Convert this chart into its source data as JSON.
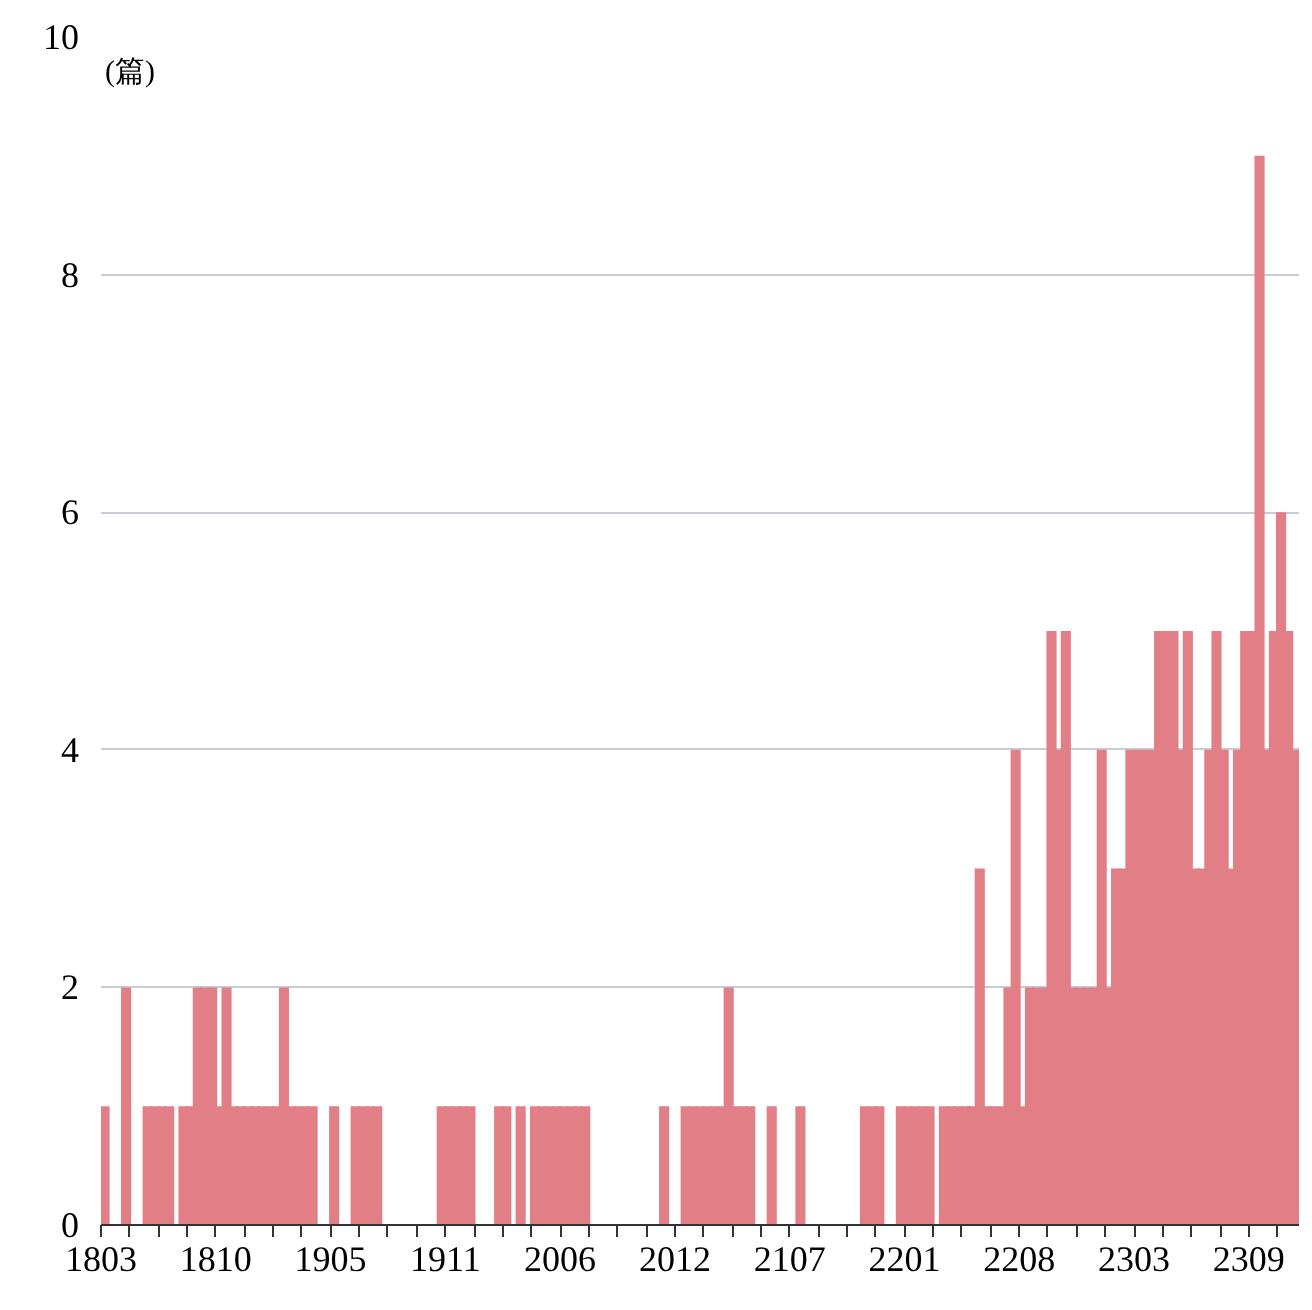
{
  "chart_data": {
    "type": "bar",
    "ylabel": "(篇)",
    "color": "#e27f86",
    "categories": [
      "1803",
      null,
      null,
      null,
      null,
      null,
      null,
      null,
      null,
      null,
      null,
      null,
      null,
      null,
      null,
      null,
      "1810",
      null,
      null,
      null,
      null,
      null,
      null,
      null,
      null,
      null,
      null,
      null,
      null,
      null,
      null,
      null,
      "1905",
      null,
      null,
      null,
      null,
      null,
      null,
      null,
      null,
      null,
      null,
      null,
      null,
      null,
      null,
      null,
      "1911",
      null,
      null,
      null,
      null,
      null,
      null,
      null,
      null,
      null,
      null,
      null,
      null,
      null,
      null,
      null,
      "2006",
      null,
      null,
      null,
      null,
      null,
      null,
      null,
      null,
      null,
      null,
      null,
      null,
      null,
      null,
      null,
      "2012",
      null,
      null,
      null,
      null,
      null,
      null,
      null,
      null,
      null,
      null,
      null,
      null,
      null,
      null,
      null,
      "2107",
      null,
      null,
      null,
      null,
      null,
      null,
      null,
      null,
      null,
      null,
      null,
      null,
      null,
      null,
      null,
      "2201",
      null,
      null,
      null,
      null,
      null,
      null,
      null,
      null,
      null,
      null,
      null,
      null,
      null,
      null,
      null,
      "2208",
      null,
      null,
      null,
      null,
      null,
      null,
      null,
      null,
      null,
      null,
      null,
      null,
      null,
      null,
      null,
      "2303",
      null,
      null,
      null,
      null,
      null,
      null,
      null,
      null,
      null,
      null,
      null,
      null,
      null,
      null,
      null,
      "2309",
      null,
      null,
      null,
      null,
      null,
      null
    ],
    "values": [
      1,
      0,
      0,
      2,
      0,
      0,
      1,
      1,
      1,
      1,
      0,
      1,
      1,
      2,
      2,
      2,
      1,
      2,
      1,
      1,
      1,
      1,
      1,
      1,
      1,
      2,
      1,
      1,
      1,
      1,
      0,
      0,
      1,
      0,
      0,
      1,
      1,
      1,
      1,
      0,
      0,
      0,
      0,
      0,
      0,
      0,
      0,
      1,
      1,
      1,
      1,
      1,
      0,
      0,
      0,
      1,
      1,
      0,
      1,
      0,
      1,
      1,
      1,
      1,
      1,
      1,
      1,
      1,
      0,
      0,
      0,
      0,
      0,
      0,
      0,
      0,
      0,
      0,
      1,
      0,
      0,
      1,
      1,
      1,
      1,
      1,
      1,
      2,
      1,
      1,
      1,
      0,
      0,
      1,
      0,
      0,
      0,
      1,
      0,
      0,
      0,
      0,
      0,
      0,
      0,
      0,
      1,
      1,
      1,
      0,
      0,
      1,
      1,
      1,
      1,
      1,
      0,
      1,
      1,
      1,
      1,
      1,
      3,
      1,
      1,
      1,
      2,
      4,
      1,
      2,
      2,
      2,
      5,
      4,
      5,
      2,
      2,
      2,
      2,
      4,
      2,
      3,
      3,
      4,
      4,
      4,
      4,
      5,
      5,
      5,
      4,
      5,
      3,
      3,
      4,
      5,
      4,
      3,
      4,
      5,
      5,
      9,
      4,
      5,
      6,
      5,
      4
    ],
    "ylim": [
      0,
      10
    ],
    "yticks": [
      0,
      2,
      4,
      6,
      8,
      10
    ],
    "grid": "y"
  }
}
